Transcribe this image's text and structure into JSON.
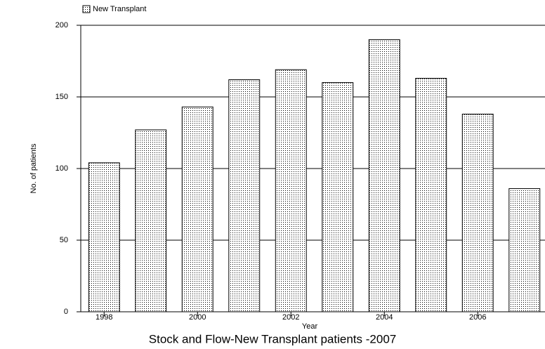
{
  "chart_data": {
    "type": "bar",
    "title": "Stock and Flow-New Transplant patients -2007",
    "x_label": "Year",
    "y_label": "No. of patients",
    "categories": [
      "1998",
      null,
      "2000",
      null,
      "2002",
      null,
      "2004",
      null,
      "2006",
      null
    ],
    "series": [
      {
        "name": "New Transplant",
        "color": "#000000",
        "values": [
          104,
          127,
          143,
          162,
          169,
          160,
          190,
          163,
          138,
          86
        ]
      }
    ],
    "ylim": [
      0,
      200
    ],
    "yticks": [
      0,
      50,
      100,
      150,
      200
    ],
    "grid": true,
    "legend": "top-left"
  }
}
